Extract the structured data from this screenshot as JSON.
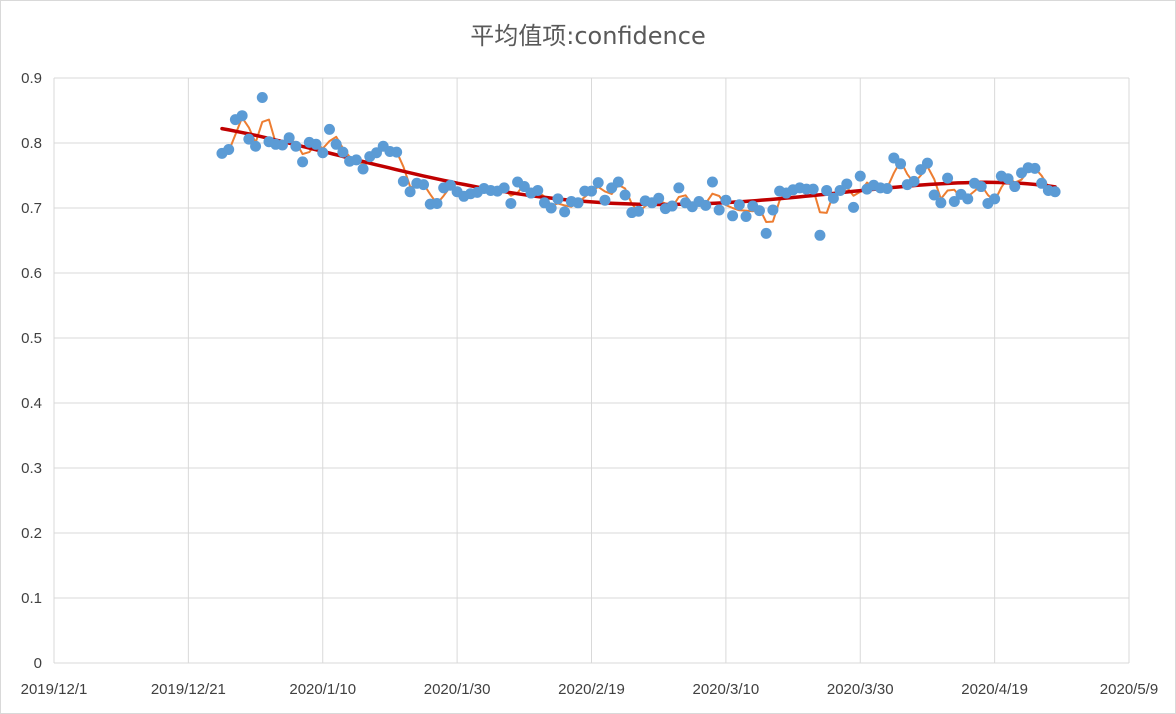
{
  "chart_data": {
    "type": "scatter",
    "title": "平均值项:confidence",
    "xlabel": "",
    "ylabel": "",
    "xlim": [
      "2019-12-01",
      "2020-05-09"
    ],
    "ylim": [
      0,
      0.9
    ],
    "x_ticks": [
      "2019/12/1",
      "2019/12/21",
      "2020/1/10",
      "2020/1/30",
      "2020/2/19",
      "2020/3/10",
      "2020/3/30",
      "2020/4/19",
      "2020/5/9"
    ],
    "y_ticks": [
      "0",
      "0.1",
      "0.2",
      "0.3",
      "0.4",
      "0.5",
      "0.6",
      "0.7",
      "0.8",
      "0.9"
    ],
    "grid": true,
    "legend": "none",
    "colors": {
      "points": "#5b9bd5",
      "moving_average": "#ed7d31",
      "trend": "#c00000",
      "grid": "#d9d9d9"
    },
    "series": [
      {
        "x": [
          "2019-12-26",
          "2019-12-27",
          "2019-12-28",
          "2019-12-29",
          "2019-12-30",
          "2019-12-31",
          "2020-01-01",
          "2020-01-02",
          "2020-01-03",
          "2020-01-04",
          "2020-01-05",
          "2020-01-06",
          "2020-01-07",
          "2020-01-08",
          "2020-01-09",
          "2020-01-10",
          "2020-01-11",
          "2020-01-12",
          "2020-01-13",
          "2020-01-14",
          "2020-01-15",
          "2020-01-16",
          "2020-01-17",
          "2020-01-18",
          "2020-01-19",
          "2020-01-20",
          "2020-01-21",
          "2020-01-22",
          "2020-01-23",
          "2020-01-24",
          "2020-01-25",
          "2020-01-26",
          "2020-01-27",
          "2020-01-28",
          "2020-01-29",
          "2020-01-30",
          "2020-01-31",
          "2020-02-01",
          "2020-02-02",
          "2020-02-03",
          "2020-02-04",
          "2020-02-05",
          "2020-02-06",
          "2020-02-07",
          "2020-02-08",
          "2020-02-09",
          "2020-02-10",
          "2020-02-11",
          "2020-02-12",
          "2020-02-13",
          "2020-02-14",
          "2020-02-15",
          "2020-02-16",
          "2020-02-17",
          "2020-02-18",
          "2020-02-19",
          "2020-02-20",
          "2020-02-21",
          "2020-02-22",
          "2020-02-23",
          "2020-02-24",
          "2020-02-25",
          "2020-02-26",
          "2020-02-27",
          "2020-02-28",
          "2020-02-29",
          "2020-03-01",
          "2020-03-02",
          "2020-03-03",
          "2020-03-04",
          "2020-03-05",
          "2020-03-06",
          "2020-03-07",
          "2020-03-08",
          "2020-03-09",
          "2020-03-10",
          "2020-03-11",
          "2020-03-12",
          "2020-03-13",
          "2020-03-14",
          "2020-03-15",
          "2020-03-16",
          "2020-03-17",
          "2020-03-18",
          "2020-03-19",
          "2020-03-20",
          "2020-03-21",
          "2020-03-22",
          "2020-03-23",
          "2020-03-24",
          "2020-03-25",
          "2020-03-26",
          "2020-03-27",
          "2020-03-28",
          "2020-03-29",
          "2020-03-30",
          "2020-03-31",
          "2020-04-01",
          "2020-04-02",
          "2020-04-03",
          "2020-04-04",
          "2020-04-05",
          "2020-04-06",
          "2020-04-07",
          "2020-04-08",
          "2020-04-09",
          "2020-04-10",
          "2020-04-11",
          "2020-04-12",
          "2020-04-13",
          "2020-04-14",
          "2020-04-15",
          "2020-04-16",
          "2020-04-17",
          "2020-04-18",
          "2020-04-19",
          "2020-04-20",
          "2020-04-21",
          "2020-04-22",
          "2020-04-23",
          "2020-04-24",
          "2020-04-25",
          "2020-04-26",
          "2020-04-27",
          "2020-04-28"
        ],
        "y": [
          0.784,
          0.79,
          0.836,
          0.842,
          0.806,
          0.795,
          0.87,
          0.802,
          0.798,
          0.797,
          0.808,
          0.795,
          0.771,
          0.801,
          0.798,
          0.785,
          0.821,
          0.798,
          0.786,
          0.772,
          0.774,
          0.76,
          0.779,
          0.785,
          0.795,
          0.787,
          0.786,
          0.741,
          0.725,
          0.738,
          0.736,
          0.706,
          0.707,
          0.731,
          0.735,
          0.725,
          0.718,
          0.722,
          0.724,
          0.73,
          0.727,
          0.726,
          0.731,
          0.707,
          0.74,
          0.733,
          0.723,
          0.727,
          0.708,
          0.7,
          0.714,
          0.694,
          0.71,
          0.708,
          0.726,
          0.726,
          0.739,
          0.712,
          0.731,
          0.74,
          0.72,
          0.693,
          0.695,
          0.711,
          0.708,
          0.715,
          0.699,
          0.703,
          0.731,
          0.708,
          0.702,
          0.71,
          0.704,
          0.74,
          0.697,
          0.712,
          0.688,
          0.705,
          0.687,
          0.703,
          0.696,
          0.661,
          0.697,
          0.726,
          0.723,
          0.728,
          0.731,
          0.729,
          0.729,
          0.658,
          0.727,
          0.715,
          0.727,
          0.737,
          0.701,
          0.749,
          0.729,
          0.735,
          0.731,
          0.73,
          0.777,
          0.768,
          0.736,
          0.741,
          0.759,
          0.769,
          0.72,
          0.708,
          0.746,
          0.71,
          0.721,
          0.714,
          0.738,
          0.733,
          0.707,
          0.714,
          0.749,
          0.745,
          0.733,
          0.754,
          0.762,
          0.761,
          0.738,
          0.727,
          0.725
        ]
      }
    ]
  }
}
